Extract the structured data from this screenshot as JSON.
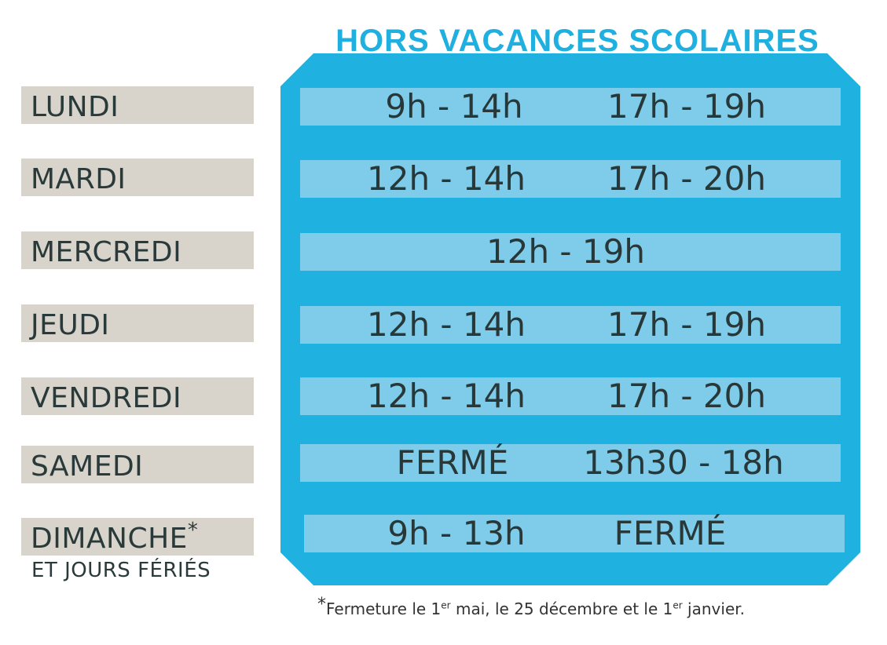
{
  "title": "HORS VACANCES SCOLAIRES",
  "days": [
    {
      "name": "LUNDI",
      "hours": [
        "9h - 14h",
        "17h - 19h"
      ]
    },
    {
      "name": "MARDI",
      "hours": [
        "12h - 14h",
        "17h - 20h"
      ]
    },
    {
      "name": "MERCREDI",
      "hours": [
        "12h - 19h"
      ]
    },
    {
      "name": "JEUDI",
      "hours": [
        "12h - 14h",
        "17h - 19h"
      ]
    },
    {
      "name": "VENDREDI",
      "hours": [
        "12h - 14h",
        "17h - 20h"
      ]
    },
    {
      "name": "SAMEDI",
      "hours": [
        "FERMÉ",
        "13h30 - 18h"
      ]
    },
    {
      "name": "DIMANCHE",
      "marker": "*",
      "subtitle": "ET JOURS FÉRIÉS",
      "hours": [
        "9h - 13h",
        "FERMÉ"
      ]
    }
  ],
  "footnote": {
    "marker": "*",
    "part1": "Fermeture le 1",
    "sup1": "er",
    "part2": " mai, le 25 décembre et le 1",
    "sup2": "er",
    "part3": " janvier."
  },
  "colors": {
    "accent": "#1fb2e0",
    "row": "#7ecbea",
    "label_bg": "#d8d4cb",
    "text": "#2a3a3a"
  }
}
